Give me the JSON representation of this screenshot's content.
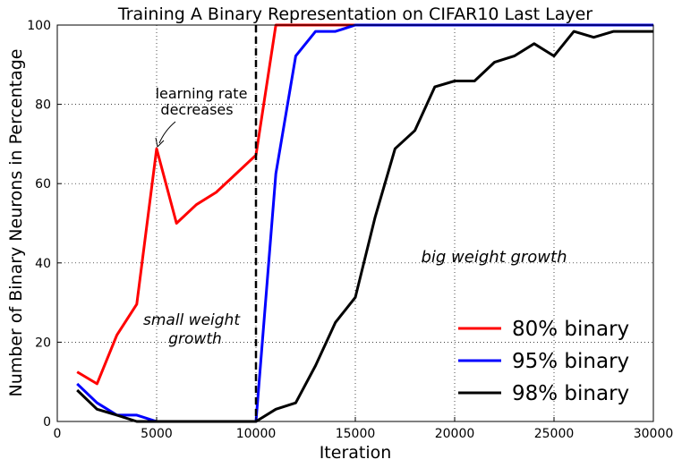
{
  "chart_data": {
    "type": "line",
    "title": "Training A Binary Representation on CIFAR10 Last Layer",
    "xlabel": "Iteration",
    "ylabel": "Number of Binary Neurons in Percentage",
    "xlim": [
      0,
      30000
    ],
    "ylim": [
      0,
      100
    ],
    "xticks": [
      0,
      5000,
      10000,
      15000,
      20000,
      25000,
      30000
    ],
    "yticks": [
      0,
      20,
      40,
      60,
      80,
      100
    ],
    "grid": true,
    "legend_position": "bottom-right",
    "series": [
      {
        "name": "80% binary",
        "color": "#ff0000",
        "x": [
          1000,
          2000,
          3000,
          4000,
          5000,
          6000,
          7000,
          8000,
          9000,
          10000,
          11000,
          12000,
          13000,
          14000,
          15000,
          30000
        ],
        "y": [
          12.5,
          9.5,
          21.8,
          29.6,
          68.8,
          50.0,
          54.7,
          57.8,
          62.5,
          67.2,
          100,
          100,
          100,
          100,
          100,
          100
        ]
      },
      {
        "name": "95% binary",
        "color": "#0000ff",
        "x": [
          1000,
          2000,
          3000,
          4000,
          5000,
          6000,
          7000,
          8000,
          9000,
          10000,
          11000,
          12000,
          13000,
          14000,
          15000,
          30000
        ],
        "y": [
          9.5,
          4.7,
          1.6,
          1.6,
          0,
          0,
          0,
          0,
          0,
          0,
          62.5,
          92.2,
          98.4,
          98.4,
          100,
          100
        ]
      },
      {
        "name": "98% binary",
        "color": "#000000",
        "x": [
          1000,
          2000,
          3000,
          4000,
          5000,
          6000,
          7000,
          8000,
          9000,
          10000,
          11000,
          12000,
          13000,
          14000,
          15000,
          16000,
          17000,
          18000,
          19000,
          20000,
          21000,
          22000,
          23000,
          24000,
          25000,
          26000,
          27000,
          28000,
          29000,
          30000
        ],
        "y": [
          7.9,
          3.1,
          1.6,
          0,
          0,
          0,
          0,
          0,
          0,
          0,
          3.1,
          4.7,
          14.1,
          25.0,
          31.3,
          51.6,
          68.8,
          73.4,
          84.4,
          85.9,
          85.9,
          90.6,
          92.2,
          95.3,
          92.2,
          98.4,
          96.9,
          98.4,
          98.4,
          98.4
        ]
      }
    ],
    "vline": {
      "x": 10000,
      "style": "dashed",
      "color": "#000000"
    },
    "annotations": {
      "lr_line1": "learning rate",
      "lr_line2": "decreases",
      "small_line1": "small weight",
      "small_line2": "growth",
      "big": "big weight growth"
    }
  }
}
